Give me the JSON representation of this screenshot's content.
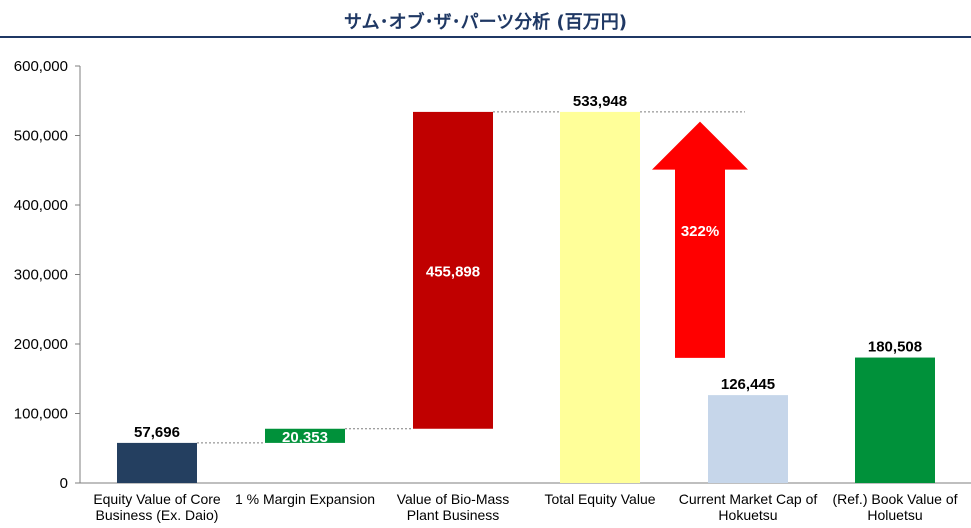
{
  "chart_data": {
    "type": "bar",
    "title": "サム･オブ･ザ･パーツ分析 (百万円)",
    "ylim": [
      0,
      600000
    ],
    "yticks": [
      0,
      100000,
      200000,
      300000,
      400000,
      500000,
      600000
    ],
    "ytick_labels": [
      "0",
      "100,000",
      "200,000",
      "300,000",
      "400,000",
      "500,000",
      "600,000"
    ],
    "grid": false,
    "legend": "none",
    "categories": [
      [
        "Equity Value of Core",
        "Business (Ex. Daio)"
      ],
      [
        "1 % Margin Expansion"
      ],
      [
        "Value of Bio-Mass",
        "Plant Business"
      ],
      [
        "Total Equity Value"
      ],
      [
        "Current Market Cap of",
        "Hokuetsu"
      ],
      [
        "(Ref.) Book Value of",
        "Holuetsu"
      ]
    ],
    "bars": [
      {
        "base": 0,
        "value": 57696,
        "label": "57,696",
        "color": "#243f60",
        "label_pos": "above"
      },
      {
        "base": 57696,
        "value": 20353,
        "label": "20,353",
        "color": "#00913a",
        "label_pos": "inside"
      },
      {
        "base": 78049,
        "value": 455898,
        "label": "455,898",
        "color": "#c00000",
        "label_pos": "inside"
      },
      {
        "base": 0,
        "value": 533948,
        "label": "533,948",
        "color": "#ffff99",
        "label_pos": "above"
      },
      {
        "base": 0,
        "value": 126445,
        "label": "126,445",
        "color": "#c6d6ea",
        "label_pos": "above"
      },
      {
        "base": 0,
        "value": 180508,
        "label": "180,508",
        "color": "#00913a",
        "label_pos": "above"
      }
    ],
    "annotation": {
      "type": "up-arrow",
      "label": "322%",
      "color": "#ff0000",
      "from_value": 180000,
      "to_value": 520000
    }
  }
}
